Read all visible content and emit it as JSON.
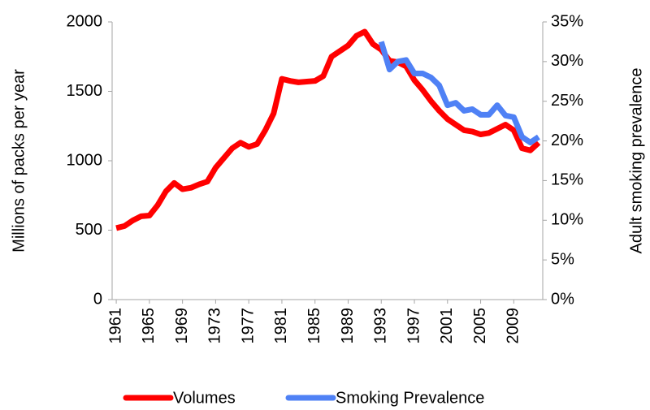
{
  "chart_data": {
    "type": "line",
    "y_label": "Millions of packs per year",
    "y2_label": "Adult smoking prevalence",
    "x": [
      1961,
      1962,
      1963,
      1964,
      1965,
      1966,
      1967,
      1968,
      1969,
      1970,
      1971,
      1972,
      1973,
      1974,
      1975,
      1976,
      1977,
      1978,
      1979,
      1980,
      1981,
      1982,
      1983,
      1984,
      1985,
      1986,
      1987,
      1988,
      1989,
      1990,
      1991,
      1992,
      1993,
      1994,
      1995,
      1996,
      1997,
      1998,
      1999,
      2000,
      2001,
      2002,
      2003,
      2004,
      2005,
      2006,
      2007,
      2008,
      2009,
      2010,
      2011,
      2012
    ],
    "xlim": [
      1960.5,
      2012.5
    ],
    "xticks": [
      1961,
      1965,
      1969,
      1973,
      1977,
      1981,
      1985,
      1989,
      1993,
      1997,
      2001,
      2005,
      2009
    ],
    "ylim": [
      0,
      2000
    ],
    "yticks": [
      0,
      500,
      1000,
      1500,
      2000
    ],
    "y2lim": [
      0,
      35
    ],
    "y2ticks": [
      {
        "value": 0,
        "label": "0%"
      },
      {
        "value": 5,
        "label": "5%"
      },
      {
        "value": 10,
        "label": "10%"
      },
      {
        "value": 15,
        "label": "15%"
      },
      {
        "value": 20,
        "label": "20%"
      },
      {
        "value": 25,
        "label": "25%"
      },
      {
        "value": 30,
        "label": "30%"
      },
      {
        "value": 35,
        "label": "35%"
      }
    ],
    "legend": "bottom",
    "series": [
      {
        "name": "Volumes",
        "color": "#ff0000",
        "values": [
          515,
          530,
          570,
          600,
          605,
          680,
          780,
          840,
          795,
          805,
          830,
          850,
          950,
          1020,
          1090,
          1130,
          1100,
          1120,
          1220,
          1340,
          1590,
          1575,
          1565,
          1570,
          1575,
          1610,
          1750,
          1790,
          1830,
          1900,
          1930,
          1840,
          1800,
          1720,
          1710,
          1680,
          1580,
          1510,
          1430,
          1360,
          1300,
          1260,
          1220,
          1210,
          1190,
          1200,
          1230,
          1260,
          1220,
          1090,
          1075,
          1130
        ]
      },
      {
        "name": "Smoking Prevalence",
        "color": "#4f81f5",
        "axis": "y2",
        "values": [
          null,
          null,
          null,
          null,
          null,
          null,
          null,
          null,
          null,
          null,
          null,
          null,
          null,
          null,
          null,
          null,
          null,
          null,
          null,
          null,
          null,
          null,
          null,
          null,
          null,
          null,
          null,
          null,
          null,
          null,
          null,
          null,
          32.5,
          29,
          30,
          30.2,
          28.5,
          28.5,
          28,
          27,
          24.5,
          24.8,
          23.8,
          24,
          23.3,
          23.3,
          24.5,
          23.2,
          23,
          20.5,
          19.8,
          20.5
        ]
      }
    ]
  }
}
